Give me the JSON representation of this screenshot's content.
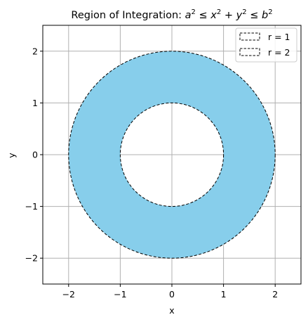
{
  "chart_data": {
    "type": "area",
    "title_parts": {
      "prefix": "Region of Integration: ",
      "a": "a",
      "leq1": " ≤ ",
      "x": "x",
      "plus1": " + ",
      "y": "y",
      "leq2": " ≤ ",
      "b": "b",
      "sup": "2"
    },
    "xlabel": "x",
    "ylabel": "y",
    "xlim": [
      -2.5,
      2.5
    ],
    "ylim": [
      -2.5,
      2.5
    ],
    "xticks": [
      -2,
      -1,
      0,
      1,
      2
    ],
    "yticks": [
      -2,
      -1,
      0,
      1,
      2
    ],
    "xtick_labels": [
      "−2",
      "−1",
      "0",
      "1",
      "2"
    ],
    "ytick_labels": [
      "−2",
      "−1",
      "0",
      "1",
      "2"
    ],
    "grid": true,
    "legend_placement": "top-right",
    "region": {
      "inner_radius": 1,
      "outer_radius": 2,
      "fill_color": "#87ceeb"
    },
    "series": [
      {
        "name": "r = 1",
        "radius": 1,
        "line_style": "dashed",
        "color": "#000000"
      },
      {
        "name": "r = 2",
        "radius": 2,
        "line_style": "dashed",
        "color": "#000000"
      }
    ]
  }
}
